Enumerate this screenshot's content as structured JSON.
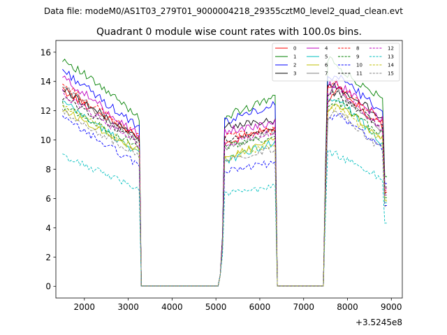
{
  "suptitle": "Data file: modeM0/AS1T03_279T01_9000004218_29355cztM0_level2_quad_clean.evt",
  "chart_data": {
    "type": "line",
    "title": "Quadrant 0 module wise count rates with 100.0s bins.",
    "xlabel": "",
    "ylabel": "",
    "x_offset_label": "+3.5245e8",
    "xlim": [
      1350,
      9250
    ],
    "ylim": [
      -0.8,
      16.8
    ],
    "xticks": [
      2000,
      3000,
      4000,
      5000,
      6000,
      7000,
      8000,
      9000
    ],
    "yticks": [
      0,
      2,
      4,
      6,
      8,
      10,
      12,
      14,
      16
    ],
    "legend_position": "top-right",
    "gaps": [
      [
        3300,
        5100
      ],
      [
        6400,
        7500
      ]
    ],
    "segments": [
      [
        1500,
        3250
      ],
      [
        5200,
        6350
      ],
      [
        7550,
        8900
      ]
    ],
    "series": [
      {
        "name": "0",
        "color": "#ff0000",
        "dash": "solid",
        "a": 13.4,
        "b": 12.6,
        "c": 10.1,
        "d": 9.8,
        "e": 10.9,
        "f": 12.5,
        "g": 13.5,
        "h": 10.7
      },
      {
        "name": "1",
        "color": "#008000",
        "dash": "solid",
        "a": 15.6,
        "b": 14.4,
        "c": 11.6,
        "d": 11.6,
        "e": 12.9,
        "f": 15.6,
        "g": 15.0,
        "h": 12.5
      },
      {
        "name": "2",
        "color": "#0000ff",
        "dash": "solid",
        "a": 14.8,
        "b": 13.5,
        "c": 10.8,
        "d": 11.3,
        "e": 12.4,
        "f": 14.2,
        "g": 14.4,
        "h": 11.7
      },
      {
        "name": "3",
        "color": "#000000",
        "dash": "solid",
        "a": 13.5,
        "b": 12.6,
        "c": 10.1,
        "d": 10.9,
        "e": 11.4,
        "f": 13.6,
        "g": 13.7,
        "h": 11.3
      },
      {
        "name": "4",
        "color": "#bf00bf",
        "dash": "solid",
        "a": 14.3,
        "b": 12.9,
        "c": 10.3,
        "d": 10.6,
        "e": 11.2,
        "f": 13.6,
        "g": 13.9,
        "h": 11.1
      },
      {
        "name": "5",
        "color": "#00bfbf",
        "dash": "solid",
        "a": 12.6,
        "b": 11.0,
        "c": 9.1,
        "d": 8.5,
        "e": 9.9,
        "f": 12.6,
        "g": 12.9,
        "h": 9.5
      },
      {
        "name": "6",
        "color": "#bfbf00",
        "dash": "solid",
        "a": 12.1,
        "b": 10.7,
        "c": 9.3,
        "d": 8.8,
        "e": 10.0,
        "f": 12.0,
        "g": 12.6,
        "h": 9.8
      },
      {
        "name": "7",
        "color": "#808080",
        "dash": "solid",
        "a": 13.7,
        "b": 12.2,
        "c": 9.8,
        "d": 9.5,
        "e": 10.6,
        "f": 13.3,
        "g": 13.4,
        "h": 10.4
      },
      {
        "name": "8",
        "color": "#ff0000",
        "dash": "dashed",
        "a": 13.8,
        "b": 12.4,
        "c": 10.2,
        "d": 10.2,
        "e": 10.7,
        "f": 13.4,
        "g": 13.8,
        "h": 10.9
      },
      {
        "name": "9",
        "color": "#008000",
        "dash": "dashed",
        "a": 12.4,
        "b": 11.2,
        "c": 9.5,
        "d": 9.6,
        "e": 10.1,
        "f": 12.2,
        "g": 12.7,
        "h": 10.1
      },
      {
        "name": "10",
        "color": "#0000ff",
        "dash": "dashed",
        "a": 11.5,
        "b": 9.9,
        "c": 8.3,
        "d": 7.8,
        "e": 8.5,
        "f": 11.4,
        "g": 11.8,
        "h": 9.2
      },
      {
        "name": "11",
        "color": "#000000",
        "dash": "dashed",
        "a": 12.9,
        "b": 11.8,
        "c": 9.9,
        "d": 10.1,
        "e": 10.7,
        "f": 13.0,
        "g": 13.2,
        "h": 10.6
      },
      {
        "name": "12",
        "color": "#bf00bf",
        "dash": "dashed",
        "a": 13.2,
        "b": 12.0,
        "c": 9.7,
        "d": 9.8,
        "e": 10.5,
        "f": 13.1,
        "g": 13.6,
        "h": 10.4
      },
      {
        "name": "13",
        "color": "#00bfbf",
        "dash": "dashed",
        "a": 8.9,
        "b": 7.6,
        "c": 6.7,
        "d": 6.3,
        "e": 6.8,
        "f": 9.1,
        "g": 9.0,
        "h": 7.2
      },
      {
        "name": "14",
        "color": "#bfbf00",
        "dash": "dashed",
        "a": 12.4,
        "b": 11.0,
        "c": 9.2,
        "d": 8.7,
        "e": 9.8,
        "f": 12.3,
        "g": 12.2,
        "h": 9.7
      },
      {
        "name": "15",
        "color": "#808080",
        "dash": "dashed",
        "a": 11.9,
        "b": 10.7,
        "c": 8.9,
        "d": 8.7,
        "e": 9.4,
        "f": 11.6,
        "g": 12.0,
        "h": 9.1
      }
    ]
  }
}
